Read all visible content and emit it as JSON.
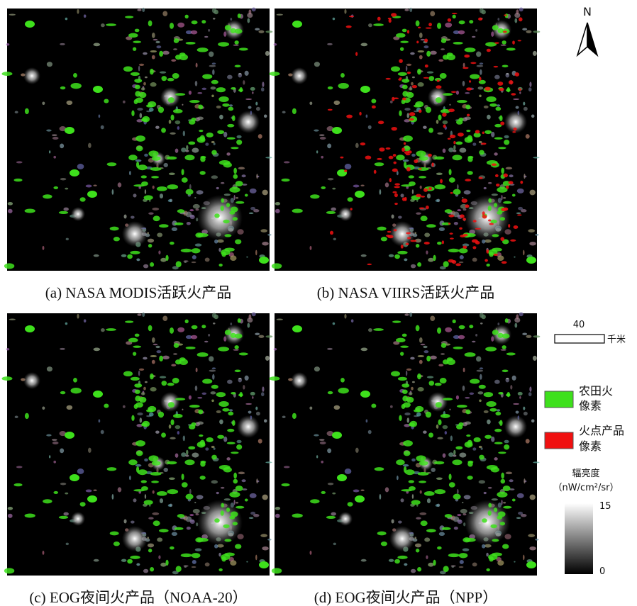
{
  "panels": [
    {
      "caption": "(a) NASA MODIS活跃火产品"
    },
    {
      "caption": "(b) NASA VIIRS活跃火产品"
    },
    {
      "caption": "(c) EOG夜间火产品（NOAA-20）"
    },
    {
      "caption": "(d) EOG夜间火产品（NPP）"
    }
  ],
  "north": "N",
  "scale_bar": {
    "value": 40,
    "unit": "千米"
  },
  "legend": {
    "items": [
      {
        "label_lines": [
          "农田火",
          "像素"
        ],
        "color": "#3ee01c"
      },
      {
        "label_lines": [
          "火点产品",
          "像素"
        ],
        "color": "#f01010"
      }
    ]
  },
  "colorbar": {
    "title": "辐亮度",
    "unit": "（nW/cm²/sr）",
    "max": 15,
    "min": 0
  }
}
